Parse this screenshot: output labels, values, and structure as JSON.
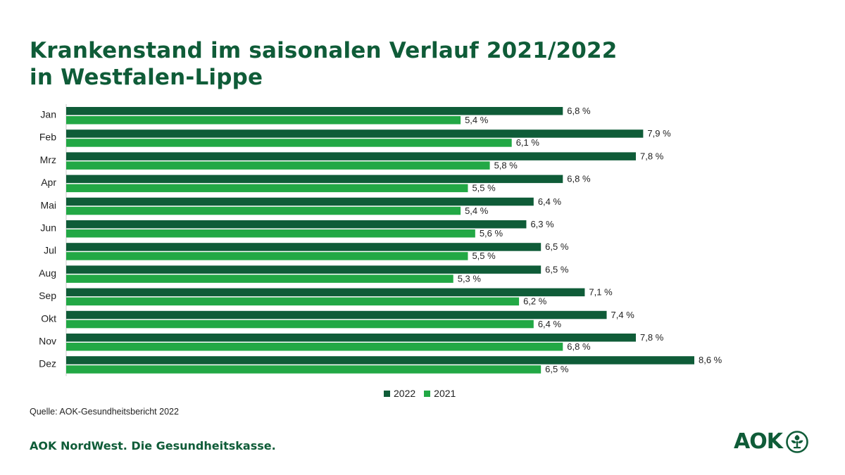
{
  "title_line1": "Krankenstand im saisonalen Verlauf 2021/2022",
  "title_line2": "in Westfalen-Lippe",
  "source": "Quelle: AOK-Gesundheitsbericht 2022",
  "footer": "AOK NordWest. Die Gesundheitskasse.",
  "logo_text": "AOK",
  "colors": {
    "series_2022": "#0f5c38",
    "series_2021": "#22a845",
    "title": "#0f5c38"
  },
  "chart_data": {
    "type": "bar",
    "orientation": "horizontal",
    "title": "Krankenstand im saisonalen Verlauf 2021/2022 in Westfalen-Lippe",
    "categories": [
      "Jan",
      "Feb",
      "Mrz",
      "Apr",
      "Mai",
      "Jun",
      "Jul",
      "Aug",
      "Sep",
      "Okt",
      "Nov",
      "Dez"
    ],
    "series": [
      {
        "name": "2022",
        "values": [
          6.8,
          7.9,
          7.8,
          6.8,
          6.4,
          6.3,
          6.5,
          6.5,
          7.1,
          7.4,
          7.8,
          8.6
        ],
        "labels": [
          "6,8 %",
          "7,9 %",
          "7,8 %",
          "6,8 %",
          "6,4 %",
          "6,3 %",
          "6,5 %",
          "6,5 %",
          "7,1 %",
          "7,4 %",
          "7,8 %",
          "8,6 %"
        ]
      },
      {
        "name": "2021",
        "values": [
          5.4,
          6.1,
          5.8,
          5.5,
          5.4,
          5.6,
          5.5,
          5.3,
          6.2,
          6.4,
          6.8,
          6.5
        ],
        "labels": [
          "5,4 %",
          "6,1 %",
          "5,8 %",
          "5,5 %",
          "5,4 %",
          "5,6 %",
          "5,5 %",
          "5,3 %",
          "6,2 %",
          "6,4 %",
          "6,8 %",
          "6,5 %"
        ]
      }
    ],
    "xlim": [
      0,
      9.2
    ],
    "grid": false,
    "legend_position": "bottom-center",
    "units": "%"
  }
}
